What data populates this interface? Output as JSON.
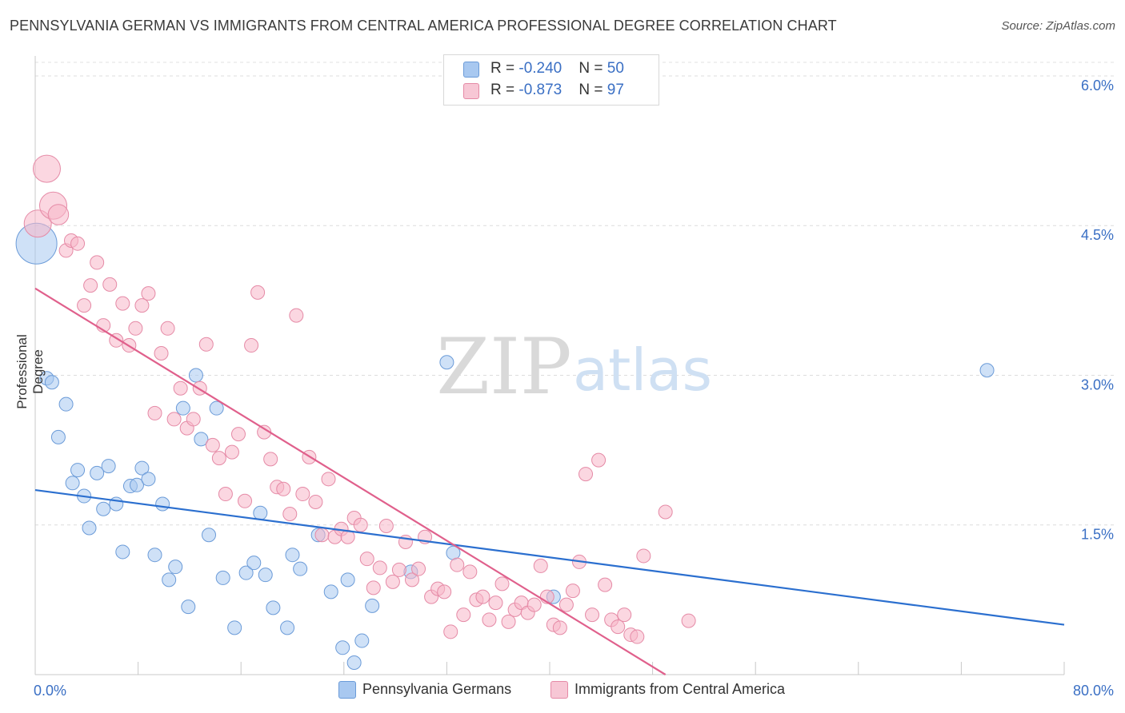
{
  "title": "PENNSYLVANIA GERMAN VS IMMIGRANTS FROM CENTRAL AMERICA PROFESSIONAL DEGREE CORRELATION CHART",
  "source": "Source: ZipAtlas.com",
  "watermark": {
    "zip": "ZIP",
    "atlas": "atlas"
  },
  "legend_top": [
    {
      "r_label": "R = ",
      "r_value": "-0.240",
      "n_label": "N = ",
      "n_value": "50",
      "color": "#a8c8f0",
      "border": "#6b9bd8"
    },
    {
      "r_label": "R = ",
      "r_value": "-0.873",
      "n_label": "N = ",
      "n_value": "97",
      "color": "#f7b6c8",
      "border": "#e58aa6"
    }
  ],
  "chart_data": {
    "type": "scatter",
    "xlabel": "",
    "ylabel": "Professional Degree",
    "xlim": [
      0,
      80
    ],
    "ylim": [
      0,
      6.2
    ],
    "x_tick_labels": [
      "0.0%",
      "80.0%"
    ],
    "y_ticks": [
      1.5,
      3.0,
      4.5,
      6.0
    ],
    "y_tick_labels": [
      "1.5%",
      "3.0%",
      "4.5%",
      "6.0%"
    ],
    "grid": "horizontal dashed",
    "legend": "bottom-center",
    "series": [
      {
        "name": "Pennsylvania Germans",
        "color": "#a8c8f0",
        "stroke": "#6b9bd8",
        "line_color": "#2b6fcf",
        "trend": [
          [
            0,
            1.85
          ],
          [
            80,
            0.5
          ]
        ],
        "points": [
          [
            0.1,
            4.32,
            3
          ],
          [
            0.9,
            2.97,
            1
          ],
          [
            1.3,
            2.93,
            1
          ],
          [
            1.8,
            2.38,
            1
          ],
          [
            2.4,
            2.71,
            1
          ],
          [
            2.9,
            1.92,
            1
          ],
          [
            3.3,
            2.05,
            1
          ],
          [
            3.8,
            1.79,
            1
          ],
          [
            4.2,
            1.47,
            1
          ],
          [
            4.8,
            2.02,
            1
          ],
          [
            5.3,
            1.66,
            1
          ],
          [
            5.7,
            2.09,
            1
          ],
          [
            6.3,
            1.71,
            1
          ],
          [
            6.8,
            1.23,
            1
          ],
          [
            7.4,
            1.89,
            1
          ],
          [
            7.9,
            1.9,
            1
          ],
          [
            8.3,
            2.07,
            1
          ],
          [
            8.8,
            1.96,
            1
          ],
          [
            9.3,
            1.2,
            1
          ],
          [
            9.9,
            1.71,
            1
          ],
          [
            10.4,
            0.95,
            1
          ],
          [
            10.9,
            1.08,
            1
          ],
          [
            11.5,
            2.67,
            1
          ],
          [
            11.9,
            0.68,
            1
          ],
          [
            12.5,
            3.0,
            1
          ],
          [
            12.9,
            2.36,
            1
          ],
          [
            13.5,
            1.4,
            1
          ],
          [
            14.1,
            2.67,
            1
          ],
          [
            14.6,
            0.97,
            1
          ],
          [
            15.5,
            0.47,
            1
          ],
          [
            16.4,
            1.02,
            1
          ],
          [
            17.0,
            1.12,
            1
          ],
          [
            17.5,
            1.62,
            1
          ],
          [
            17.9,
            1.0,
            1
          ],
          [
            18.5,
            0.67,
            1
          ],
          [
            19.6,
            0.47,
            1
          ],
          [
            20.0,
            1.2,
            1
          ],
          [
            20.6,
            1.06,
            1
          ],
          [
            22.0,
            1.4,
            1
          ],
          [
            23.0,
            0.83,
            1
          ],
          [
            23.9,
            0.27,
            1
          ],
          [
            24.3,
            0.95,
            1
          ],
          [
            24.8,
            0.12,
            1
          ],
          [
            25.4,
            0.34,
            1
          ],
          [
            26.2,
            0.69,
            1
          ],
          [
            29.2,
            1.03,
            1
          ],
          [
            32.0,
            3.13,
            1
          ],
          [
            32.5,
            1.22,
            1
          ],
          [
            40.3,
            0.78,
            1
          ],
          [
            74.0,
            3.05,
            1
          ]
        ]
      },
      {
        "name": "Immigrants from Central America",
        "color": "#f7b6c8",
        "stroke": "#e58aa6",
        "line_color": "#e0608c",
        "trend": [
          [
            0,
            3.87
          ],
          [
            49,
            0.0
          ]
        ],
        "points": [
          [
            0.2,
            4.52,
            2
          ],
          [
            0.9,
            5.07,
            2
          ],
          [
            1.4,
            4.7,
            2
          ],
          [
            1.8,
            4.61,
            1.5
          ],
          [
            2.4,
            4.25,
            1
          ],
          [
            2.8,
            4.35,
            1
          ],
          [
            3.3,
            4.32,
            1
          ],
          [
            3.8,
            3.7,
            1
          ],
          [
            4.3,
            3.9,
            1
          ],
          [
            4.8,
            4.13,
            1
          ],
          [
            5.3,
            3.5,
            1
          ],
          [
            5.8,
            3.91,
            1
          ],
          [
            6.3,
            3.35,
            1
          ],
          [
            6.8,
            3.72,
            1
          ],
          [
            7.3,
            3.3,
            1
          ],
          [
            7.8,
            3.47,
            1
          ],
          [
            8.3,
            3.7,
            1
          ],
          [
            8.8,
            3.82,
            1
          ],
          [
            9.3,
            2.62,
            1
          ],
          [
            9.8,
            3.22,
            1
          ],
          [
            10.3,
            3.47,
            1
          ],
          [
            10.8,
            2.56,
            1
          ],
          [
            11.3,
            2.87,
            1
          ],
          [
            11.8,
            2.47,
            1
          ],
          [
            12.3,
            2.56,
            1
          ],
          [
            12.8,
            2.87,
            1
          ],
          [
            13.3,
            3.31,
            1
          ],
          [
            13.8,
            2.3,
            1
          ],
          [
            14.3,
            2.17,
            1
          ],
          [
            14.8,
            1.81,
            1
          ],
          [
            15.3,
            2.23,
            1
          ],
          [
            15.8,
            2.41,
            1
          ],
          [
            16.3,
            1.74,
            1
          ],
          [
            16.8,
            3.3,
            1
          ],
          [
            17.3,
            3.83,
            1
          ],
          [
            17.8,
            2.43,
            1
          ],
          [
            18.3,
            2.16,
            1
          ],
          [
            18.8,
            1.88,
            1
          ],
          [
            19.3,
            1.86,
            1
          ],
          [
            19.8,
            1.61,
            1
          ],
          [
            20.3,
            3.6,
            1
          ],
          [
            20.8,
            1.81,
            1
          ],
          [
            21.3,
            2.18,
            1
          ],
          [
            21.8,
            1.73,
            1
          ],
          [
            22.3,
            1.4,
            1
          ],
          [
            22.8,
            1.96,
            1
          ],
          [
            23.3,
            1.38,
            1
          ],
          [
            23.8,
            1.46,
            1
          ],
          [
            24.3,
            1.38,
            1
          ],
          [
            24.8,
            1.57,
            1
          ],
          [
            25.3,
            1.5,
            1
          ],
          [
            25.8,
            1.16,
            1
          ],
          [
            26.3,
            0.87,
            1
          ],
          [
            26.8,
            1.07,
            1
          ],
          [
            27.3,
            1.49,
            1
          ],
          [
            27.8,
            0.93,
            1
          ],
          [
            28.3,
            1.05,
            1
          ],
          [
            28.8,
            1.33,
            1
          ],
          [
            29.3,
            0.95,
            1
          ],
          [
            29.8,
            1.06,
            1
          ],
          [
            30.3,
            1.38,
            1
          ],
          [
            30.8,
            0.78,
            1
          ],
          [
            31.3,
            0.86,
            1
          ],
          [
            31.8,
            0.83,
            1
          ],
          [
            32.3,
            0.43,
            1
          ],
          [
            32.8,
            1.1,
            1
          ],
          [
            33.3,
            0.6,
            1
          ],
          [
            33.8,
            1.03,
            1
          ],
          [
            34.3,
            0.75,
            1
          ],
          [
            34.8,
            0.78,
            1
          ],
          [
            35.3,
            0.55,
            1
          ],
          [
            35.8,
            0.72,
            1
          ],
          [
            36.3,
            0.91,
            1
          ],
          [
            36.8,
            0.53,
            1
          ],
          [
            37.3,
            0.65,
            1
          ],
          [
            37.8,
            0.72,
            1
          ],
          [
            38.3,
            0.62,
            1
          ],
          [
            38.8,
            0.7,
            1
          ],
          [
            39.3,
            1.09,
            1
          ],
          [
            39.8,
            0.78,
            1
          ],
          [
            40.3,
            0.5,
            1
          ],
          [
            40.8,
            0.47,
            1
          ],
          [
            41.3,
            0.7,
            1
          ],
          [
            41.8,
            0.84,
            1
          ],
          [
            42.3,
            1.13,
            1
          ],
          [
            42.8,
            2.01,
            1
          ],
          [
            43.3,
            0.6,
            1
          ],
          [
            43.8,
            2.15,
            1
          ],
          [
            44.3,
            0.9,
            1
          ],
          [
            44.8,
            0.55,
            1
          ],
          [
            45.3,
            0.48,
            1
          ],
          [
            45.8,
            0.6,
            1
          ],
          [
            46.3,
            0.4,
            1
          ],
          [
            46.8,
            0.38,
            1
          ],
          [
            47.3,
            1.19,
            1
          ],
          [
            49.0,
            1.63,
            1
          ],
          [
            50.8,
            0.54,
            1
          ]
        ]
      }
    ]
  }
}
